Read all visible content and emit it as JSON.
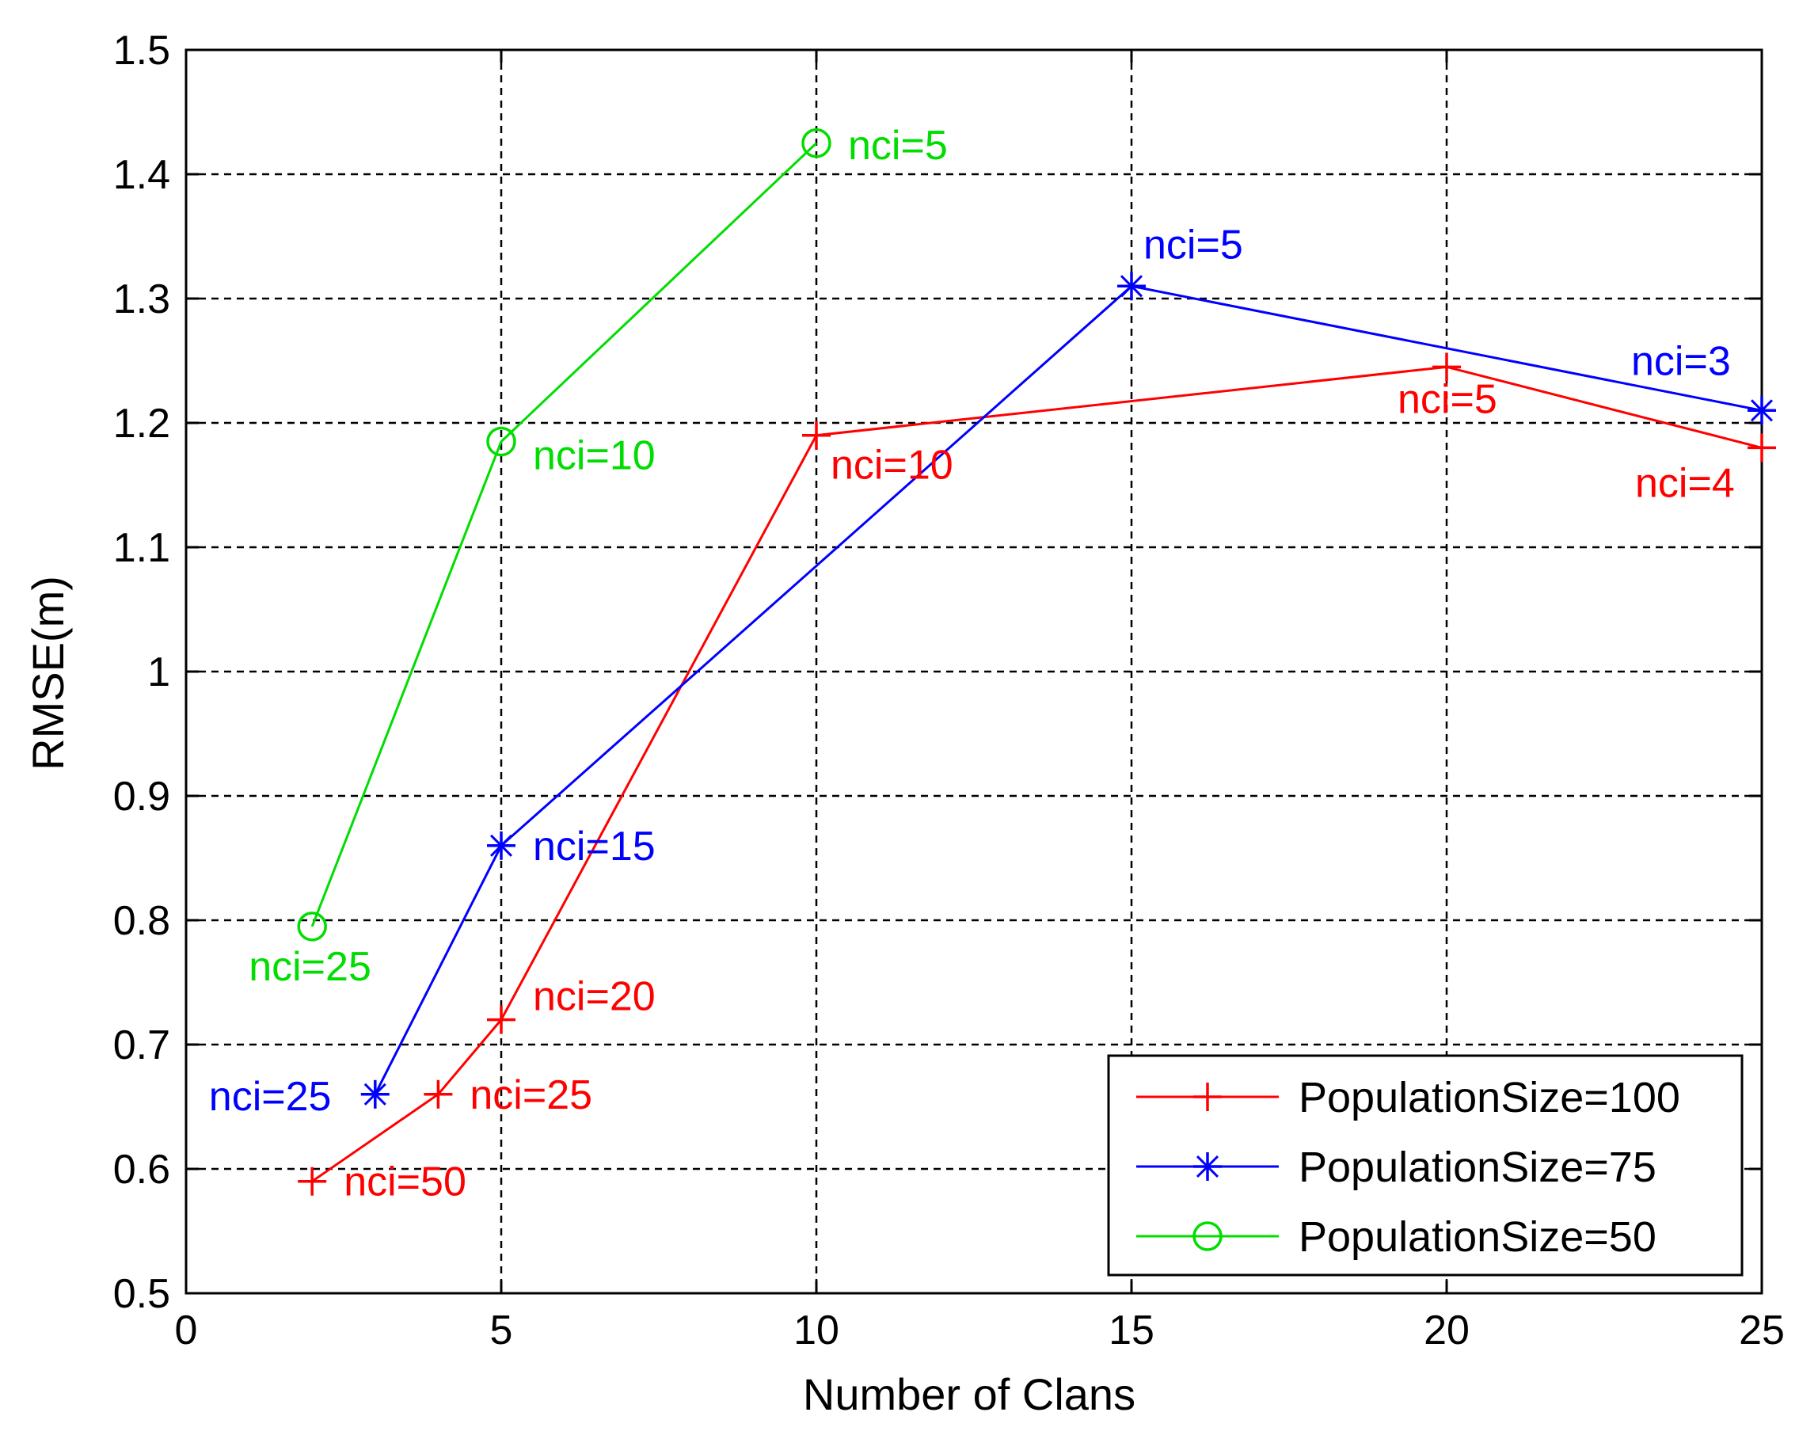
{
  "chart_data": {
    "type": "line",
    "title": "",
    "xlabel": "Number of Clans",
    "ylabel": "RMSE(m)",
    "xlim": [
      0,
      25
    ],
    "ylim": [
      0.5,
      1.5
    ],
    "xticks": [
      0,
      5,
      10,
      15,
      20,
      25
    ],
    "yticks": [
      0.5,
      0.6,
      0.7,
      0.8,
      0.9,
      1,
      1.1,
      1.2,
      1.3,
      1.4,
      1.5
    ],
    "grid": true,
    "legend_position": "bottom-right",
    "series": [
      {
        "name": "PopulationSize=100",
        "color": "#ff0000",
        "marker": "plus",
        "points": [
          {
            "x": 2,
            "y": 0.59,
            "label": "nci=50"
          },
          {
            "x": 4,
            "y": 0.66,
            "label": "nci=25"
          },
          {
            "x": 5,
            "y": 0.72,
            "label": "nci=20"
          },
          {
            "x": 10,
            "y": 1.19,
            "label": "nci=10"
          },
          {
            "x": 20,
            "y": 1.245,
            "label": "nci=5"
          },
          {
            "x": 25,
            "y": 1.18,
            "label": "nci=4"
          }
        ]
      },
      {
        "name": "PopulationSize=75",
        "color": "#0000ff",
        "marker": "asterisk",
        "points": [
          {
            "x": 3,
            "y": 0.66,
            "label": "nci=25"
          },
          {
            "x": 5,
            "y": 0.86,
            "label": "nci=15"
          },
          {
            "x": 15,
            "y": 1.31,
            "label": "nci=5"
          },
          {
            "x": 25,
            "y": 1.21,
            "label": "nci=3"
          }
        ]
      },
      {
        "name": "PopulationSize=50",
        "color": "#00dd00",
        "marker": "circle",
        "points": [
          {
            "x": 2,
            "y": 0.795,
            "label": "nci=25"
          },
          {
            "x": 5,
            "y": 1.185,
            "label": "nci=10"
          },
          {
            "x": 10,
            "y": 1.425,
            "label": "nci=5"
          }
        ]
      }
    ]
  }
}
